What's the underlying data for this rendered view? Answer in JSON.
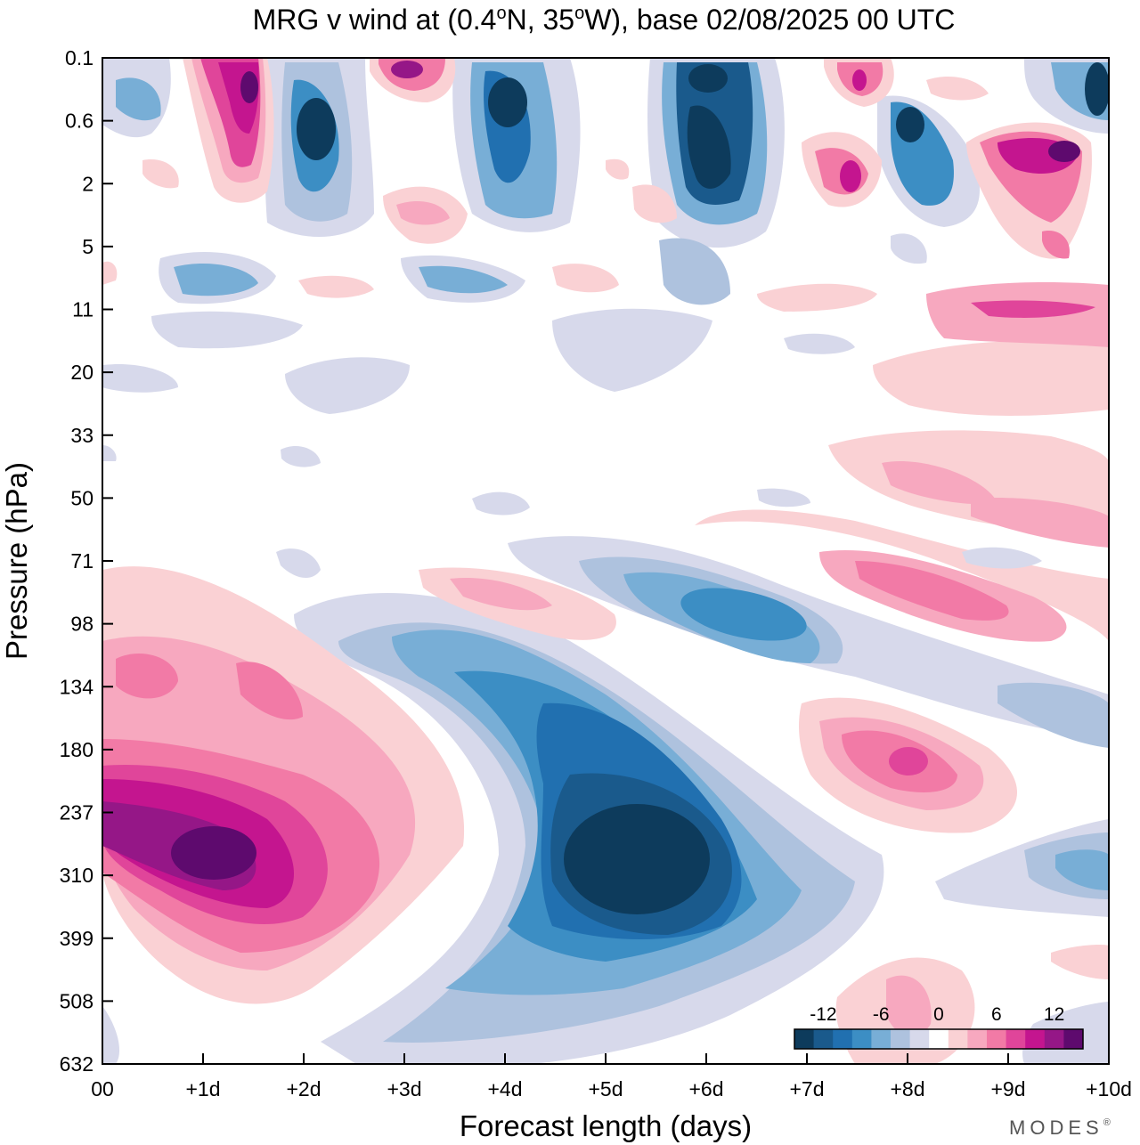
{
  "chart_data": {
    "type": "heatmap",
    "title": "MRG v wind at (0.4°N, 35°W),  base 02/08/2025  00 UTC",
    "title_parts": {
      "prefix": "MRG v wind at (0.4",
      "lat_unit": "N, 35",
      "lon_unit": "W),  base 02/08/2025  00 UTC",
      "degree": "o"
    },
    "xlabel": "Forecast length (days)",
    "ylabel": "Pressure (hPa)",
    "x_ticks": [
      "00",
      "+1d",
      "+2d",
      "+3d",
      "+4d",
      "+5d",
      "+6d",
      "+7d",
      "+8d",
      "+9d",
      "+10d"
    ],
    "xlim": [
      0,
      10
    ],
    "y_ticks": [
      "0.1",
      "0.6",
      "2",
      "5",
      "11",
      "20",
      "33",
      "50",
      "71",
      "98",
      "134",
      "180",
      "237",
      "310",
      "399",
      "508",
      "632"
    ],
    "ylim": [
      0.1,
      632
    ],
    "y_scale": "log (approx.)",
    "colorbar": {
      "tick_labels": [
        "-12",
        "-6",
        "0",
        "6",
        "12"
      ],
      "tick_values": [
        -12,
        -6,
        0,
        6,
        12
      ],
      "levels": [
        -15,
        -13,
        -11,
        -9,
        -7,
        -5,
        -3,
        -1,
        1,
        3,
        5,
        7,
        9,
        11,
        13,
        15
      ],
      "colors": [
        "#0d3b5c",
        "#1a5a8c",
        "#2170b0",
        "#3c8ec4",
        "#78aed6",
        "#aec2de",
        "#d7d9eb",
        "#ffffff",
        "#fad1d4",
        "#f7a8bf",
        "#f27aa6",
        "#e0459a",
        "#c4158f",
        "#951787",
        "#5e0a6e"
      ],
      "placement": "bottom-right"
    },
    "features": [
      {
        "name": "upper-tropospheric northerly maximum",
        "sign": "negative",
        "x_day": 5.3,
        "pressure_hPa": 300,
        "value_approx": -14
      },
      {
        "name": "upper-tropospheric southerly maximum",
        "sign": "positive",
        "x_day": 1.4,
        "pressure_hPa": 280,
        "value_approx": 14
      },
      {
        "name": "southerly maximum near 190 hPa",
        "sign": "positive",
        "x_day": 8.0,
        "pressure_hPa": 190,
        "value_approx": 8
      },
      {
        "name": "northerly band near 90 hPa",
        "sign": "negative",
        "x_day": 5.6,
        "pressure_hPa": 90,
        "value_approx": -7
      },
      {
        "name": "stratospheric southerly band near 80 hPa",
        "sign": "positive",
        "x_day": 8.5,
        "pressure_hPa": 80,
        "value_approx": 6
      }
    ]
  },
  "branding": {
    "text": "MODES",
    "mark": "®"
  }
}
